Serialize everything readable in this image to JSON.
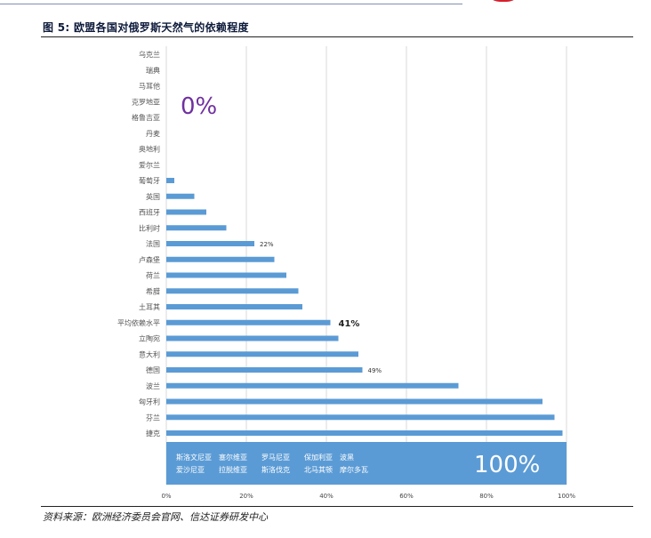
{
  "header": {
    "title": "图 5: 欧盟各国对俄罗斯天然气的依赖程度"
  },
  "footer": {
    "source": "资料来源：欧洲经济委员会官网、信达证券研发中心"
  },
  "colors": {
    "bar": "#5b9bd5",
    "band": "#5b9bd5",
    "annotation_purple": "#7030a0",
    "grid": "#d9d9d9"
  },
  "chart_data": {
    "type": "bar",
    "orientation": "horizontal",
    "title": "",
    "xlabel": "",
    "ylabel": "",
    "xlim": [
      0,
      100
    ],
    "x_ticks": [
      "0%",
      "20%",
      "40%",
      "60%",
      "80%",
      "100%"
    ],
    "categories": [
      "乌克兰",
      "瑞典",
      "马耳他",
      "克罗地亚",
      "格鲁吉亚",
      "丹麦",
      "奥地利",
      "爱尔兰",
      "葡萄牙",
      "英国",
      "西班牙",
      "比利时",
      "法国",
      "卢森堡",
      "荷兰",
      "希腊",
      "土耳其",
      "平均依赖水平",
      "立陶宛",
      "意大利",
      "德国",
      "波兰",
      "匈牙利",
      "芬兰",
      "捷克"
    ],
    "values": [
      0,
      0,
      0,
      0,
      0,
      0,
      0,
      0,
      2,
      7,
      10,
      15,
      22,
      27,
      30,
      33,
      34,
      41,
      43,
      48,
      49,
      73,
      94,
      97,
      99
    ],
    "data_labels": [
      {
        "category": "法国",
        "text": "22%",
        "bold": false
      },
      {
        "category": "平均依赖水平",
        "text": "41%",
        "bold": true
      },
      {
        "category": "德国",
        "text": "49%",
        "bold": false
      }
    ],
    "annotations": {
      "zero_group_label": "0%",
      "hundred_group_label": "100%",
      "hundred_group_countries_row1": "斯洛文尼亚　塞尔维亚　　罗马尼亚　　保加利亚　波黑",
      "hundred_group_countries_row2": "爱沙尼亚　　拉脱维亚　　斯洛伐克　　北马其顿　摩尔多瓦"
    },
    "grid": true,
    "legend": "none"
  }
}
